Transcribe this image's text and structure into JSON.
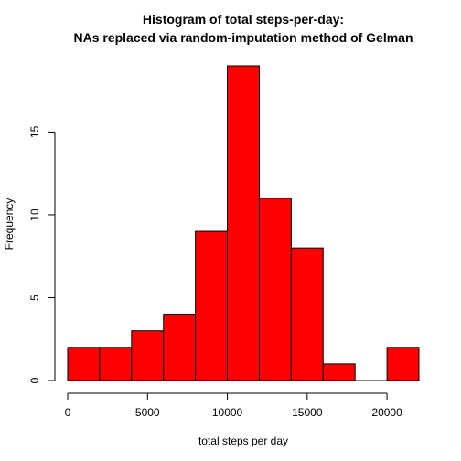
{
  "chart_data": {
    "type": "bar",
    "title_lines": [
      "Histogram of total steps-per-day:",
      "NAs replaced via random-imputation method of Gelman"
    ],
    "xlabel": "total steps per day",
    "ylabel": "Frequency",
    "bin_edges": [
      0,
      2000,
      4000,
      6000,
      8000,
      10000,
      12000,
      14000,
      16000,
      18000,
      20000,
      22000
    ],
    "values": [
      2,
      2,
      3,
      4,
      9,
      19,
      11,
      8,
      1,
      0,
      2
    ],
    "x_ticks": [
      0,
      5000,
      10000,
      15000,
      20000
    ],
    "y_ticks": [
      0,
      5,
      10,
      15
    ],
    "xlim": [
      0,
      22000
    ],
    "ylim": [
      0,
      19
    ],
    "bar_color": "#ff0000",
    "grid": false
  }
}
